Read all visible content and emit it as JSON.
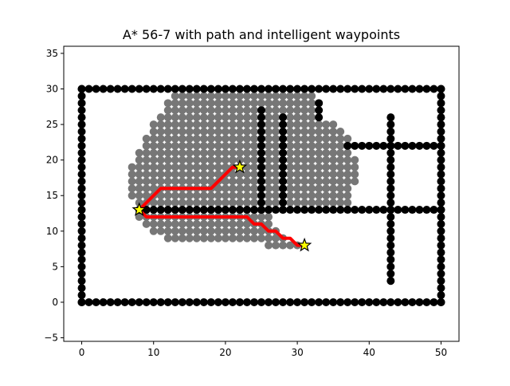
{
  "chart_data": {
    "type": "scatter",
    "title": "A* 56-7 with path and intelligent waypoints",
    "xlabel": "",
    "ylabel": "",
    "xlim": [
      -2.5,
      52.5
    ],
    "ylim": [
      -5.5,
      36
    ],
    "x_ticks": [
      0,
      10,
      20,
      30,
      40,
      50
    ],
    "y_ticks": [
      -5,
      0,
      5,
      10,
      15,
      20,
      25,
      30,
      35
    ],
    "grid": false,
    "colors": {
      "explored": "#777777",
      "obstacle": "#000000",
      "path": "#ff0000",
      "waypoint_fill": "#ffff00",
      "waypoint_edge": "#000000"
    },
    "obstacles": [
      {
        "from": [
          0,
          30
        ],
        "to": [
          50,
          30
        ]
      },
      {
        "from": [
          0,
          0
        ],
        "to": [
          50,
          0
        ]
      },
      {
        "from": [
          0,
          0
        ],
        "to": [
          0,
          30
        ]
      },
      {
        "from": [
          50,
          0
        ],
        "to": [
          50,
          30
        ]
      },
      {
        "from": [
          8,
          13
        ],
        "to": [
          50,
          13
        ]
      },
      {
        "from": [
          25,
          13
        ],
        "to": [
          25,
          27
        ]
      },
      {
        "from": [
          28,
          13
        ],
        "to": [
          28,
          26
        ]
      },
      {
        "from": [
          33,
          26
        ],
        "to": [
          33,
          28
        ]
      },
      {
        "from": [
          37,
          22
        ],
        "to": [
          50,
          22
        ]
      },
      {
        "from": [
          43,
          3
        ],
        "to": [
          43,
          26
        ]
      }
    ],
    "explored_rows": [
      {
        "y": 29,
        "x": [
          13,
          32
        ]
      },
      {
        "y": 28,
        "x": [
          12,
          32
        ]
      },
      {
        "y": 27,
        "x": [
          12,
          32
        ]
      },
      {
        "y": 26,
        "x": [
          11,
          32
        ]
      },
      {
        "y": 25,
        "x": [
          10,
          35
        ]
      },
      {
        "y": 24,
        "x": [
          10,
          36
        ]
      },
      {
        "y": 23,
        "x": [
          9,
          37
        ]
      },
      {
        "y": 22,
        "x": [
          9,
          37
        ]
      },
      {
        "y": 21,
        "x": [
          8,
          37
        ]
      },
      {
        "y": 20,
        "x": [
          8,
          38
        ]
      },
      {
        "y": 19,
        "x": [
          7,
          38
        ]
      },
      {
        "y": 18,
        "x": [
          7,
          38
        ]
      },
      {
        "y": 17,
        "x": [
          7,
          38
        ]
      },
      {
        "y": 16,
        "x": [
          7,
          37
        ]
      },
      {
        "y": 15,
        "x": [
          7,
          37
        ]
      },
      {
        "y": 14,
        "x": [
          8,
          37
        ]
      },
      {
        "y": 12,
        "x": [
          8,
          26
        ]
      },
      {
        "y": 11,
        "x": [
          9,
          26
        ]
      },
      {
        "y": 10,
        "x": [
          10,
          27
        ]
      },
      {
        "y": 9,
        "x": [
          12,
          28
        ]
      },
      {
        "y": 8,
        "x": [
          26,
          30
        ]
      }
    ],
    "path": [
      {
        "x": 22,
        "y": 19
      },
      {
        "x": 21,
        "y": 19
      },
      {
        "x": 20,
        "y": 18
      },
      {
        "x": 19,
        "y": 17
      },
      {
        "x": 18,
        "y": 16
      },
      {
        "x": 11,
        "y": 16
      },
      {
        "x": 8,
        "y": 13
      },
      {
        "x": 9,
        "y": 12
      },
      {
        "x": 23,
        "y": 12
      },
      {
        "x": 24,
        "y": 11
      },
      {
        "x": 25,
        "y": 11
      },
      {
        "x": 26,
        "y": 10
      },
      {
        "x": 27,
        "y": 10
      },
      {
        "x": 28,
        "y": 9
      },
      {
        "x": 29,
        "y": 9
      },
      {
        "x": 30,
        "y": 8
      },
      {
        "x": 31,
        "y": 8
      }
    ],
    "waypoints": [
      {
        "x": 22,
        "y": 19
      },
      {
        "x": 8,
        "y": 13
      },
      {
        "x": 31,
        "y": 8
      }
    ]
  }
}
